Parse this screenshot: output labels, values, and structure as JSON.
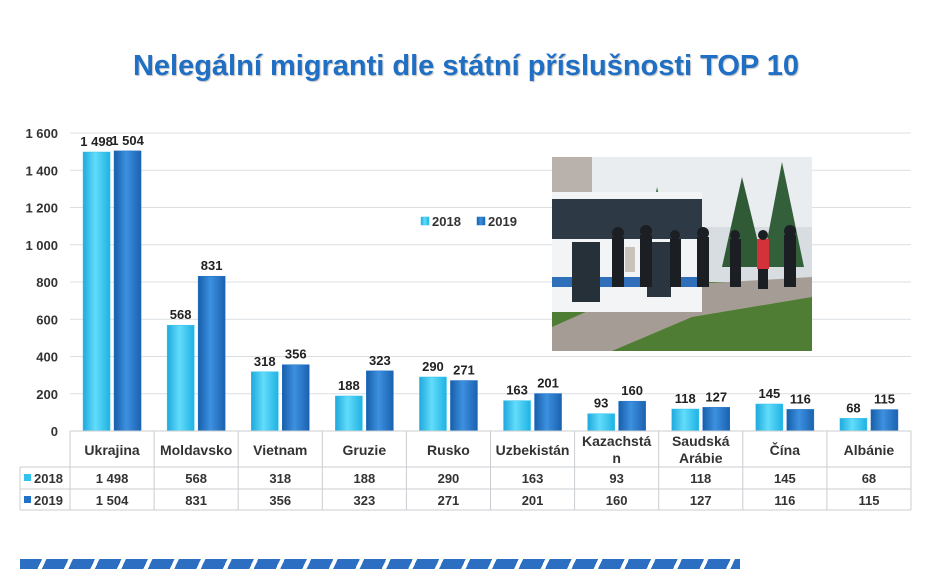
{
  "title": "Nelegální migranti dle státní příslušnosti TOP 10",
  "colors": {
    "s2018": "#2ec4ee",
    "s2019": "#1f72c8",
    "title": "#1f6fc4"
  },
  "photo": {
    "icon": "photo-illustration"
  },
  "chart_data": {
    "type": "bar",
    "title": "Nelegální migranti dle státní příslušnosti TOP 10",
    "categories": [
      "Ukrajina",
      "Moldavsko",
      "Vietnam",
      "Gruzie",
      "Rusko",
      "Uzbekistán",
      "Kazachstá n",
      "Saudská Arábie",
      "Čína",
      "Albánie"
    ],
    "category_lines": [
      [
        "Ukrajina"
      ],
      [
        "Moldavsko"
      ],
      [
        "Vietnam"
      ],
      [
        "Gruzie"
      ],
      [
        "Rusko"
      ],
      [
        "Uzbekistán"
      ],
      [
        "Kazachstá",
        "n"
      ],
      [
        "Saudská",
        "Arábie"
      ],
      [
        "Čína"
      ],
      [
        "Albánie"
      ]
    ],
    "series": [
      {
        "name": "2018",
        "values": [
          1498,
          568,
          318,
          188,
          290,
          163,
          93,
          118,
          145,
          68
        ],
        "labels": [
          "1 498",
          "568",
          "318",
          "188",
          "290",
          "163",
          "93",
          "118",
          "145",
          "68"
        ]
      },
      {
        "name": "2019",
        "values": [
          1504,
          831,
          356,
          323,
          271,
          201,
          160,
          127,
          116,
          115
        ],
        "labels": [
          "1 504",
          "831",
          "356",
          "323",
          "271",
          "201",
          "160",
          "127",
          "116",
          "115"
        ]
      }
    ],
    "ylim": [
      0,
      1600
    ],
    "yticks": [
      0,
      200,
      400,
      600,
      800,
      1000,
      1200,
      1400,
      1600
    ],
    "ytick_labels": [
      "0",
      "200",
      "400",
      "600",
      "800",
      "1 000",
      "1 200",
      "1 400",
      "1 600"
    ],
    "legend": [
      "2018",
      "2019"
    ],
    "legend_position": "center-right",
    "data_table": true,
    "grid": true
  }
}
